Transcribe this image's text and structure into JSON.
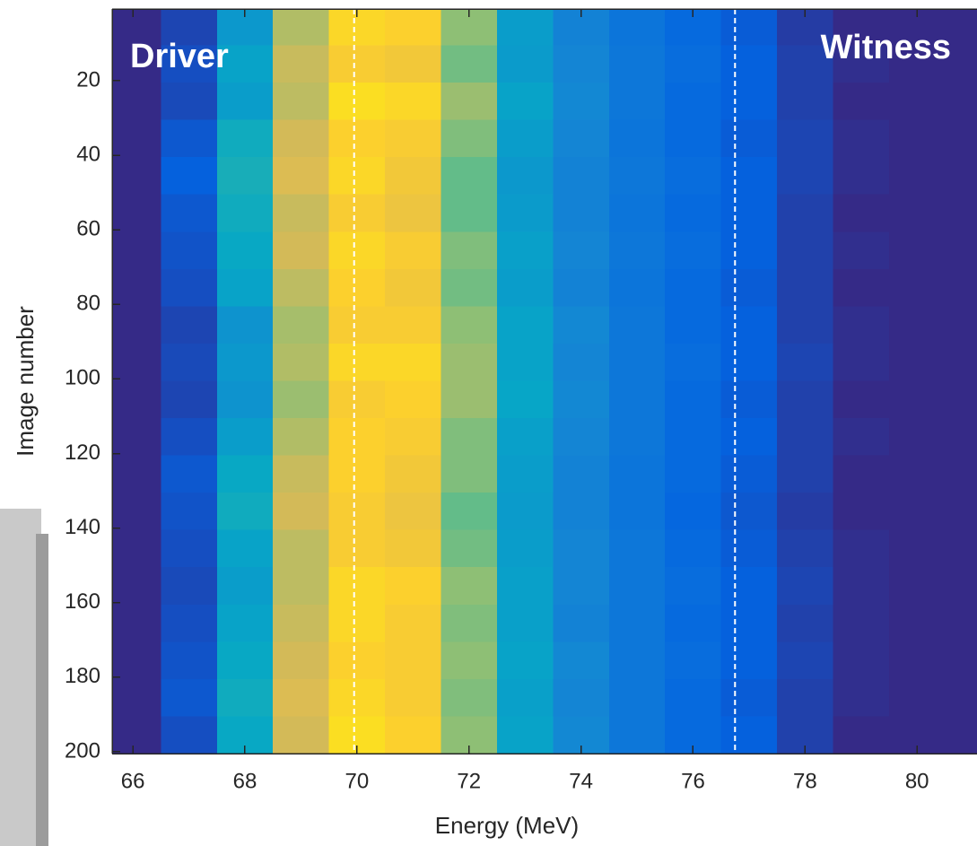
{
  "chart_data": {
    "type": "heatmap",
    "xlabel": "Energy (MeV)",
    "ylabel": "Image number",
    "annotations": [
      "Driver",
      "Witness"
    ],
    "xlim": [
      65.63,
      81.07
    ],
    "ylim": [
      0.75,
      200.5
    ],
    "ydir": "reverse",
    "xticks": [
      66,
      68,
      70,
      72,
      74,
      76,
      78,
      80
    ],
    "yticks": [
      20,
      40,
      60,
      80,
      100,
      120,
      140,
      160,
      180,
      200
    ],
    "vlines": [
      69.95,
      76.75
    ],
    "vline_color": "#ffffff",
    "colormap": [
      "#352a87",
      "#0363e1",
      "#1485d4",
      "#06a7c6",
      "#38b99e",
      "#92bf73",
      "#d9ba56",
      "#fcce2e",
      "#f9fb0e"
    ],
    "zlim": [
      0,
      1
    ],
    "xbins": [
      65.5,
      66.5,
      67.5,
      68.5,
      69.5,
      70.5,
      71.5,
      72.5,
      73.5,
      74.5,
      75.5,
      76.5,
      77.5,
      78.5,
      79.5,
      80.5,
      81.5
    ],
    "ybins": [
      0.5,
      10.5,
      20.5,
      30.5,
      40.5,
      50.5,
      60.5,
      70.5,
      80.5,
      90.5,
      100.5,
      110.5,
      120.5,
      130.5,
      140.5,
      150.5,
      160.5,
      170.5,
      180.5,
      190.5,
      200.5
    ],
    "z": [
      [
        0,
        0.06,
        0.32,
        0.68,
        0.9,
        0.88,
        0.62,
        0.34,
        0.24,
        0.19,
        0.15,
        0.11,
        0.04,
        0,
        0,
        0
      ],
      [
        0,
        0.08,
        0.36,
        0.72,
        0.86,
        0.84,
        0.58,
        0.33,
        0.25,
        0.2,
        0.16,
        0.12,
        0.05,
        0.01,
        0,
        0
      ],
      [
        0,
        0.07,
        0.34,
        0.7,
        0.92,
        0.9,
        0.64,
        0.36,
        0.26,
        0.2,
        0.15,
        0.12,
        0.05,
        0,
        0,
        0
      ],
      [
        0,
        0.1,
        0.4,
        0.74,
        0.88,
        0.86,
        0.6,
        0.34,
        0.25,
        0.19,
        0.15,
        0.11,
        0.06,
        0.01,
        0,
        0
      ],
      [
        0,
        0.12,
        0.42,
        0.76,
        0.9,
        0.84,
        0.56,
        0.32,
        0.24,
        0.2,
        0.16,
        0.12,
        0.06,
        0.01,
        0,
        0
      ],
      [
        0,
        0.1,
        0.4,
        0.72,
        0.86,
        0.82,
        0.56,
        0.33,
        0.24,
        0.19,
        0.15,
        0.12,
        0.05,
        0,
        0,
        0
      ],
      [
        0,
        0.09,
        0.38,
        0.74,
        0.9,
        0.86,
        0.6,
        0.35,
        0.25,
        0.2,
        0.16,
        0.12,
        0.05,
        0.01,
        0,
        0
      ],
      [
        0,
        0.08,
        0.36,
        0.7,
        0.88,
        0.84,
        0.58,
        0.34,
        0.24,
        0.19,
        0.15,
        0.11,
        0.05,
        0,
        0,
        0
      ],
      [
        0,
        0.06,
        0.3,
        0.66,
        0.86,
        0.86,
        0.62,
        0.36,
        0.26,
        0.2,
        0.15,
        0.12,
        0.05,
        0.01,
        0,
        0
      ],
      [
        0,
        0.07,
        0.32,
        0.68,
        0.9,
        0.9,
        0.64,
        0.36,
        0.25,
        0.2,
        0.16,
        0.12,
        0.06,
        0.01,
        0,
        0
      ],
      [
        0,
        0.06,
        0.3,
        0.64,
        0.86,
        0.88,
        0.64,
        0.37,
        0.26,
        0.2,
        0.15,
        0.11,
        0.05,
        0,
        0,
        0
      ],
      [
        0,
        0.08,
        0.34,
        0.68,
        0.88,
        0.86,
        0.6,
        0.35,
        0.25,
        0.2,
        0.15,
        0.12,
        0.05,
        0.01,
        0,
        0
      ],
      [
        0,
        0.1,
        0.38,
        0.72,
        0.88,
        0.84,
        0.6,
        0.34,
        0.24,
        0.19,
        0.15,
        0.11,
        0.05,
        0,
        0,
        0
      ],
      [
        0,
        0.09,
        0.4,
        0.74,
        0.86,
        0.82,
        0.56,
        0.33,
        0.24,
        0.19,
        0.14,
        0.1,
        0.04,
        0,
        0,
        0
      ],
      [
        0,
        0.08,
        0.36,
        0.7,
        0.86,
        0.84,
        0.58,
        0.34,
        0.25,
        0.2,
        0.15,
        0.11,
        0.05,
        0.01,
        0,
        0
      ],
      [
        0,
        0.07,
        0.34,
        0.7,
        0.9,
        0.88,
        0.62,
        0.35,
        0.25,
        0.2,
        0.16,
        0.12,
        0.06,
        0.01,
        0,
        0
      ],
      [
        0,
        0.08,
        0.36,
        0.72,
        0.9,
        0.86,
        0.6,
        0.35,
        0.24,
        0.2,
        0.15,
        0.12,
        0.05,
        0.01,
        0,
        0
      ],
      [
        0,
        0.09,
        0.38,
        0.74,
        0.88,
        0.86,
        0.62,
        0.36,
        0.26,
        0.2,
        0.16,
        0.12,
        0.06,
        0.01,
        0,
        0
      ],
      [
        0,
        0.1,
        0.4,
        0.76,
        0.9,
        0.86,
        0.6,
        0.35,
        0.25,
        0.2,
        0.15,
        0.11,
        0.05,
        0.01,
        0,
        0
      ],
      [
        0,
        0.08,
        0.38,
        0.74,
        0.92,
        0.88,
        0.62,
        0.36,
        0.26,
        0.2,
        0.15,
        0.12,
        0.05,
        0,
        0,
        0
      ]
    ]
  }
}
